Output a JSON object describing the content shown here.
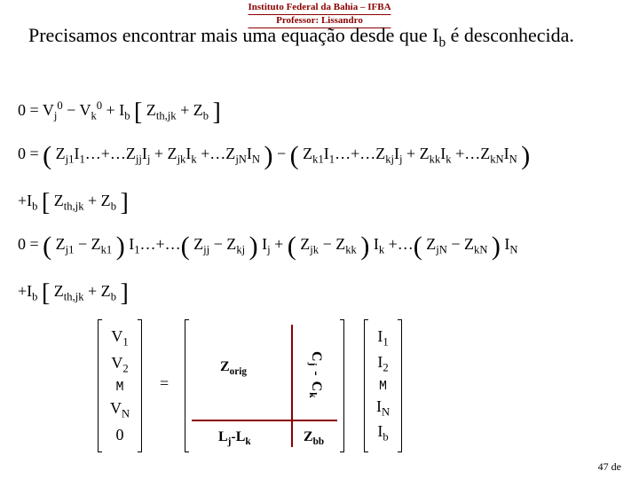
{
  "header": {
    "line1": "Instituto Federal da Bahia – IFBA",
    "line2": "Professor: Lissandro"
  },
  "statement": {
    "text_before": "Precisamos encontrar mais uma equação desde que I",
    "sub": "b",
    "text_after": " é desconhecida."
  },
  "equations": {
    "eq1": {
      "lhs": "0 = V",
      "j0sup": "0",
      "jidx": "j",
      "minus": " − V",
      "k0sup": "0",
      "kidx": "k",
      "plus": " + I",
      "bidx": "b",
      "brL": "[",
      "zth": "Z",
      "zthsub": "th,jk",
      "plus2": " + Z",
      "zbsub": "b",
      "brR": "]"
    },
    "eq2": {
      "pre": "0 = ",
      "g1": "Z_{j1}I_1…+…Z_{jj}I_j + Z_{jk}I_k +…Z_{jN}I_N",
      "mid": " − ",
      "g2": "Z_{k1}I_1…+…Z_{kj}I_j + Z_{kk}I_k +…Z_{kN}I_N"
    },
    "eq3": {
      "pre": "+I_b [ Z_{th,jk} + Z_b ]"
    },
    "eq4": {
      "pre": "0 = ( Z_{j1} − Z_{k1} ) I_1…+…( Z_{jj} − Z_{kj} ) I_j + ( Z_{jk} − Z_{kk} ) I_k +…( Z_{jN} − Z_{kN} ) I_N"
    },
    "eq5": {
      "pre": "+I_b [ Z_{th,jk} + Z_b ]"
    }
  },
  "matrix": {
    "leftvec": [
      "V_1",
      "V_2",
      "M",
      "V_N",
      "0"
    ],
    "eq": "=",
    "Zorig": "Z_{orig}",
    "rightcol": "C_j - C_k",
    "bottomleft": "L_j-L_k",
    "bottomright": "Z_{bb}",
    "rightvec": [
      "I_1",
      "I_2",
      "M",
      "I_N",
      "I_b"
    ]
  },
  "page": {
    "num": "47 de"
  },
  "colors": {
    "header": "#8b0000",
    "rule": "#8b0000",
    "text": "#000000",
    "bg": "#ffffff"
  }
}
